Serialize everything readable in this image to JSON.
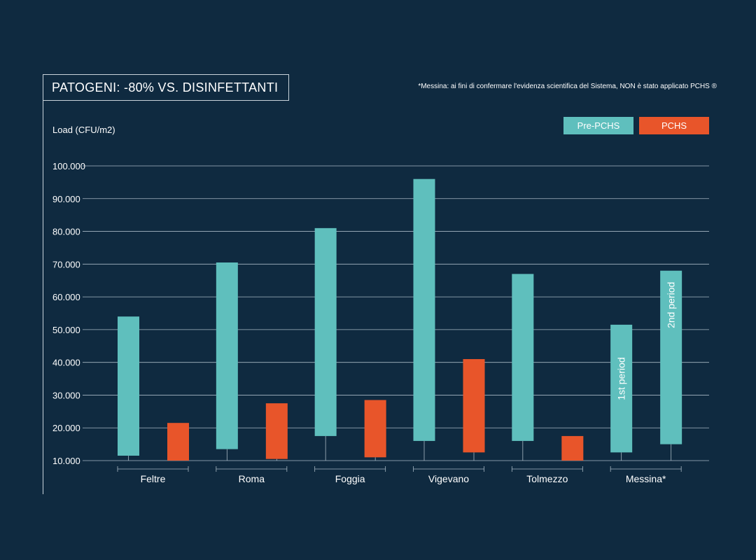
{
  "title": "PATOGENI: -80% VS. DISINFETTANTI",
  "footnote": "*Messina: ai fini di confermare l'evidenza scientifica del Sistema, NON è stato applicato PCHS ®",
  "colors": {
    "background": "#0f2a40",
    "pre": "#5fbfbd",
    "post": "#e8552a",
    "grid": "#a8b8c4"
  },
  "chart_data": {
    "type": "bar",
    "ylabel": "Load (CFU/m2)",
    "ylim": [
      10000,
      100000
    ],
    "yticks": [
      10000,
      20000,
      30000,
      40000,
      50000,
      60000,
      70000,
      80000,
      90000,
      100000
    ],
    "ytick_labels": [
      "10.000",
      "20.000",
      "30.000",
      "40.000",
      "50.000",
      "60.000",
      "70.000",
      "80.000",
      "90.000",
      "100.000"
    ],
    "grid": true,
    "legend_position": "top-right",
    "categories": [
      "Feltre",
      "Roma",
      "Foggia",
      "Vigevano",
      "Tolmezzo",
      "Messina*"
    ],
    "series": [
      {
        "name": "Pre-PCHS",
        "ranges": [
          [
            11500,
            54000
          ],
          [
            13500,
            70500
          ],
          [
            17500,
            81000
          ],
          [
            16000,
            96000
          ],
          [
            16000,
            67000
          ],
          [
            12500,
            51500
          ]
        ]
      },
      {
        "name": "PCHS",
        "ranges": [
          [
            10000,
            21500
          ],
          [
            10500,
            27500
          ],
          [
            11000,
            28500
          ],
          [
            12500,
            41000
          ],
          [
            10000,
            17500
          ],
          [
            15000,
            68000
          ]
        ]
      }
    ],
    "annotations": [
      {
        "category": "Messina*",
        "series": "Pre-PCHS",
        "text": "1st period"
      },
      {
        "category": "Messina*",
        "series": "PCHS",
        "text": "2nd period"
      }
    ],
    "notes": "Messina* second bar is drawn in the Pre-PCHS color (no PCHS applied)"
  }
}
